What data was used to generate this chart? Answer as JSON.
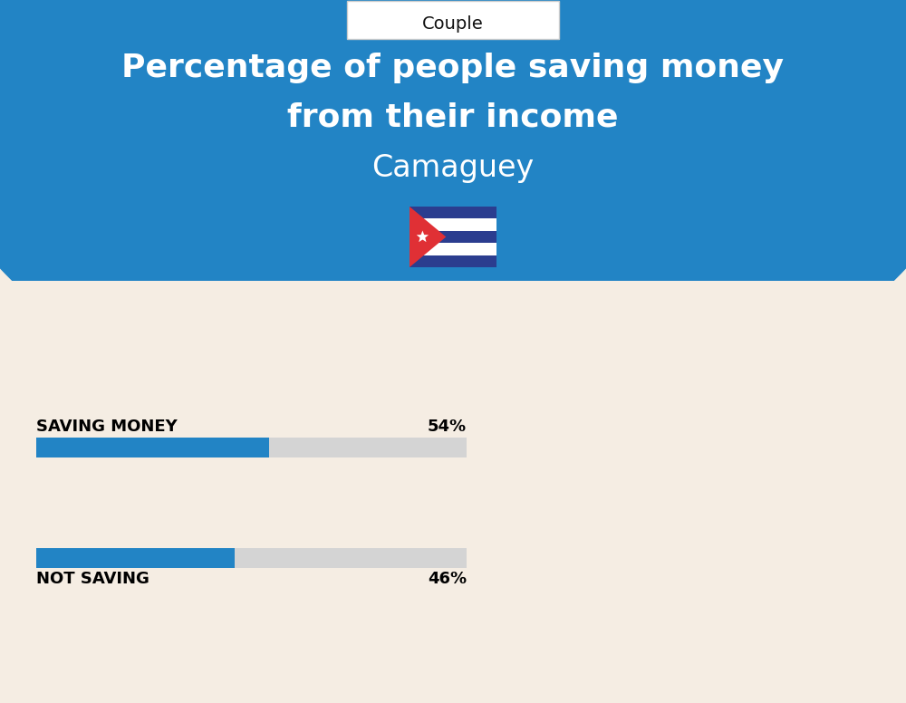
{
  "title_line1": "Percentage of people saving money",
  "title_line2": "from their income",
  "subtitle": "Camaguey",
  "category_label": "Couple",
  "saving_label": "SAVING MONEY",
  "saving_value": 54,
  "saving_text": "54%",
  "not_saving_label": "NOT SAVING",
  "not_saving_value": 46,
  "not_saving_text": "46%",
  "bg_color": "#f5ede3",
  "circle_color": "#2284c5",
  "bar_blue": "#2284c5",
  "bar_gray": "#d4d4d4",
  "title_color": "#ffffff",
  "label_color": "#000000",
  "couple_box_color": "#ffffff",
  "fig_width": 10.0,
  "fig_height": 7.76,
  "flag_blue_dark": "#2b3d8f",
  "flag_blue_light": "#ffffff",
  "flag_red": "#e03035",
  "flag_stripe_blue": "#2b3d8f"
}
